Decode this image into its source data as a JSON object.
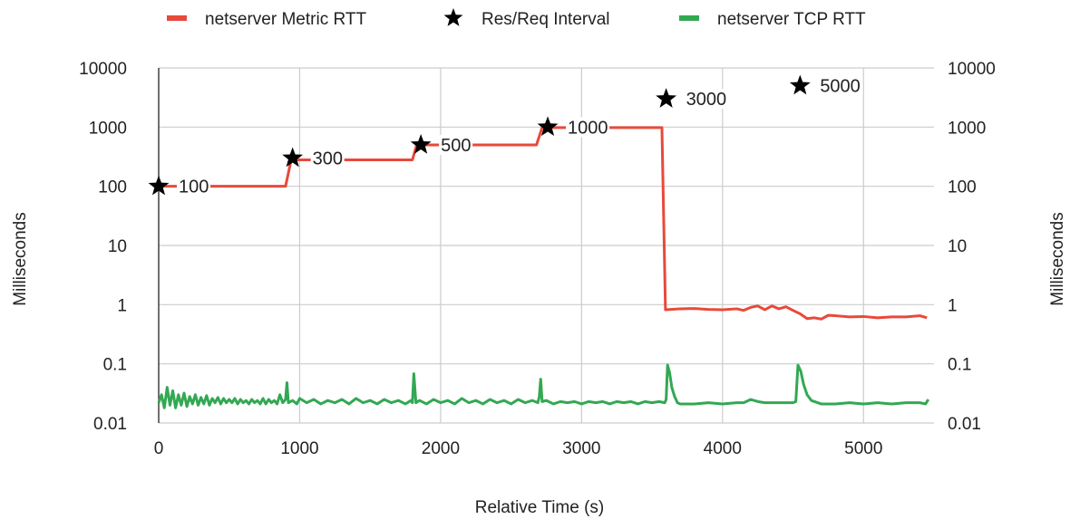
{
  "chart_data": {
    "type": "line",
    "x_axis": {
      "label": "Relative Time (s)",
      "range": [
        0,
        5500
      ],
      "ticks": [
        0,
        1000,
        2000,
        3000,
        4000,
        5000
      ],
      "tick_labels": [
        "0",
        "1000",
        "2000",
        "3000",
        "4000",
        "5000"
      ]
    },
    "y_axis_left": {
      "label": "Milliseconds",
      "scale": "log",
      "range": [
        0.01,
        10000
      ],
      "ticks": [
        10000,
        1000,
        100,
        10,
        1,
        0.1,
        0.01
      ],
      "tick_labels": [
        "10000",
        "1000",
        "100",
        "10",
        "1",
        "0.1",
        "0.01"
      ]
    },
    "y_axis_right": {
      "label": "Milliseconds",
      "scale": "log",
      "range": [
        0.01,
        10000
      ],
      "ticks": [
        10000,
        1000,
        100,
        10,
        1,
        0.1,
        0.01
      ],
      "tick_labels": [
        "10000",
        "1000",
        "100",
        "10",
        "1",
        "0.1",
        "0.01"
      ]
    },
    "grid": true,
    "legend_position": "top",
    "series": [
      {
        "name": "netserver Metric RTT",
        "kind": "line",
        "color": "#e8493a",
        "points": [
          [
            0,
            100
          ],
          [
            900,
            100
          ],
          [
            940,
            280
          ],
          [
            1800,
            280
          ],
          [
            1830,
            500
          ],
          [
            2680,
            500
          ],
          [
            2720,
            980
          ],
          [
            3570,
            980
          ],
          [
            3595,
            0.82
          ],
          [
            3700,
            0.85
          ],
          [
            3800,
            0.86
          ],
          [
            3900,
            0.83
          ],
          [
            4000,
            0.82
          ],
          [
            4100,
            0.85
          ],
          [
            4150,
            0.8
          ],
          [
            4200,
            0.9
          ],
          [
            4250,
            0.95
          ],
          [
            4300,
            0.82
          ],
          [
            4350,
            0.95
          ],
          [
            4400,
            0.85
          ],
          [
            4450,
            0.92
          ],
          [
            4500,
            0.8
          ],
          [
            4550,
            0.7
          ],
          [
            4600,
            0.58
          ],
          [
            4650,
            0.6
          ],
          [
            4700,
            0.57
          ],
          [
            4750,
            0.66
          ],
          [
            4800,
            0.65
          ],
          [
            4900,
            0.62
          ],
          [
            5000,
            0.63
          ],
          [
            5100,
            0.6
          ],
          [
            5200,
            0.62
          ],
          [
            5300,
            0.62
          ],
          [
            5400,
            0.65
          ],
          [
            5450,
            0.6
          ]
        ]
      },
      {
        "name": "Res/Req Interval",
        "kind": "marker",
        "marker": "star",
        "color": "#000000",
        "points": [
          [
            0,
            100
          ],
          [
            950,
            300
          ],
          [
            1860,
            500
          ],
          [
            2760,
            1000
          ],
          [
            3600,
            3000
          ],
          [
            4550,
            5000
          ]
        ],
        "labels": [
          "100",
          "300",
          "500",
          "1000",
          "3000",
          "5000"
        ]
      },
      {
        "name": "netserver TCP RTT",
        "kind": "line",
        "color": "#33a853",
        "points": [
          [
            0,
            0.022
          ],
          [
            20,
            0.03
          ],
          [
            40,
            0.018
          ],
          [
            60,
            0.04
          ],
          [
            80,
            0.02
          ],
          [
            100,
            0.035
          ],
          [
            120,
            0.018
          ],
          [
            140,
            0.03
          ],
          [
            160,
            0.02
          ],
          [
            180,
            0.032
          ],
          [
            200,
            0.019
          ],
          [
            220,
            0.028
          ],
          [
            240,
            0.021
          ],
          [
            260,
            0.03
          ],
          [
            280,
            0.02
          ],
          [
            300,
            0.027
          ],
          [
            320,
            0.021
          ],
          [
            340,
            0.029
          ],
          [
            360,
            0.02
          ],
          [
            380,
            0.026
          ],
          [
            400,
            0.022
          ],
          [
            420,
            0.027
          ],
          [
            440,
            0.021
          ],
          [
            460,
            0.026
          ],
          [
            480,
            0.022
          ],
          [
            500,
            0.025
          ],
          [
            520,
            0.022
          ],
          [
            540,
            0.026
          ],
          [
            560,
            0.021
          ],
          [
            580,
            0.025
          ],
          [
            600,
            0.022
          ],
          [
            620,
            0.024
          ],
          [
            640,
            0.021
          ],
          [
            660,
            0.025
          ],
          [
            680,
            0.022
          ],
          [
            700,
            0.024
          ],
          [
            720,
            0.021
          ],
          [
            740,
            0.026
          ],
          [
            760,
            0.021
          ],
          [
            780,
            0.025
          ],
          [
            800,
            0.022
          ],
          [
            820,
            0.024
          ],
          [
            840,
            0.021
          ],
          [
            860,
            0.03
          ],
          [
            880,
            0.022
          ],
          [
            900,
            0.025
          ],
          [
            910,
            0.048
          ],
          [
            920,
            0.022
          ],
          [
            950,
            0.024
          ],
          [
            980,
            0.021
          ],
          [
            1000,
            0.026
          ],
          [
            1050,
            0.022
          ],
          [
            1100,
            0.025
          ],
          [
            1150,
            0.021
          ],
          [
            1200,
            0.024
          ],
          [
            1250,
            0.022
          ],
          [
            1300,
            0.025
          ],
          [
            1350,
            0.021
          ],
          [
            1400,
            0.026
          ],
          [
            1450,
            0.022
          ],
          [
            1500,
            0.024
          ],
          [
            1550,
            0.021
          ],
          [
            1600,
            0.025
          ],
          [
            1650,
            0.022
          ],
          [
            1700,
            0.024
          ],
          [
            1750,
            0.021
          ],
          [
            1790,
            0.024
          ],
          [
            1800,
            0.022
          ],
          [
            1810,
            0.068
          ],
          [
            1825,
            0.022
          ],
          [
            1850,
            0.024
          ],
          [
            1900,
            0.021
          ],
          [
            1950,
            0.025
          ],
          [
            2000,
            0.022
          ],
          [
            2050,
            0.024
          ],
          [
            2100,
            0.021
          ],
          [
            2150,
            0.026
          ],
          [
            2200,
            0.022
          ],
          [
            2250,
            0.024
          ],
          [
            2300,
            0.021
          ],
          [
            2350,
            0.025
          ],
          [
            2400,
            0.022
          ],
          [
            2450,
            0.024
          ],
          [
            2500,
            0.021
          ],
          [
            2550,
            0.025
          ],
          [
            2600,
            0.022
          ],
          [
            2650,
            0.024
          ],
          [
            2690,
            0.022
          ],
          [
            2700,
            0.028
          ],
          [
            2710,
            0.055
          ],
          [
            2720,
            0.023
          ],
          [
            2750,
            0.024
          ],
          [
            2800,
            0.021
          ],
          [
            2850,
            0.023
          ],
          [
            2900,
            0.022
          ],
          [
            2950,
            0.023
          ],
          [
            3000,
            0.021
          ],
          [
            3050,
            0.023
          ],
          [
            3100,
            0.022
          ],
          [
            3150,
            0.023
          ],
          [
            3200,
            0.021
          ],
          [
            3250,
            0.023
          ],
          [
            3300,
            0.022
          ],
          [
            3350,
            0.023
          ],
          [
            3400,
            0.021
          ],
          [
            3450,
            0.023
          ],
          [
            3500,
            0.022
          ],
          [
            3550,
            0.023
          ],
          [
            3590,
            0.022
          ],
          [
            3600,
            0.025
          ],
          [
            3610,
            0.095
          ],
          [
            3625,
            0.07
          ],
          [
            3640,
            0.04
          ],
          [
            3660,
            0.028
          ],
          [
            3680,
            0.022
          ],
          [
            3700,
            0.021
          ],
          [
            3800,
            0.021
          ],
          [
            3900,
            0.022
          ],
          [
            4000,
            0.021
          ],
          [
            4100,
            0.022
          ],
          [
            4150,
            0.022
          ],
          [
            4200,
            0.025
          ],
          [
            4250,
            0.023
          ],
          [
            4300,
            0.022
          ],
          [
            4400,
            0.022
          ],
          [
            4500,
            0.022
          ],
          [
            4520,
            0.023
          ],
          [
            4535,
            0.095
          ],
          [
            4555,
            0.075
          ],
          [
            4575,
            0.045
          ],
          [
            4600,
            0.03
          ],
          [
            4630,
            0.024
          ],
          [
            4700,
            0.021
          ],
          [
            4800,
            0.021
          ],
          [
            4900,
            0.022
          ],
          [
            5000,
            0.021
          ],
          [
            5100,
            0.022
          ],
          [
            5200,
            0.021
          ],
          [
            5300,
            0.022
          ],
          [
            5400,
            0.022
          ],
          [
            5440,
            0.021
          ],
          [
            5460,
            0.025
          ]
        ]
      }
    ]
  }
}
